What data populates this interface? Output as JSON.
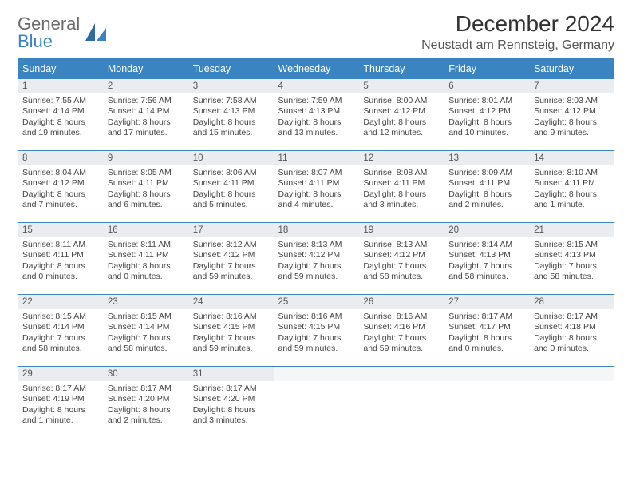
{
  "brand": {
    "general": "General",
    "blue": "Blue"
  },
  "title": "December 2024",
  "location": "Neustadt am Rennsteig, Germany",
  "colors": {
    "header_bg": "#3a84c2",
    "header_text": "#ffffff",
    "daynum_bg": "#e9edef",
    "border": "#3a84c2",
    "body_text": "#444444"
  },
  "dow": [
    "Sunday",
    "Monday",
    "Tuesday",
    "Wednesday",
    "Thursday",
    "Friday",
    "Saturday"
  ],
  "weeks": [
    {
      "nums": [
        "1",
        "2",
        "3",
        "4",
        "5",
        "6",
        "7"
      ],
      "cells": [
        {
          "sunrise": "Sunrise: 7:55 AM",
          "sunset": "Sunset: 4:14 PM",
          "daylight": "Daylight: 8 hours and 19 minutes."
        },
        {
          "sunrise": "Sunrise: 7:56 AM",
          "sunset": "Sunset: 4:14 PM",
          "daylight": "Daylight: 8 hours and 17 minutes."
        },
        {
          "sunrise": "Sunrise: 7:58 AM",
          "sunset": "Sunset: 4:13 PM",
          "daylight": "Daylight: 8 hours and 15 minutes."
        },
        {
          "sunrise": "Sunrise: 7:59 AM",
          "sunset": "Sunset: 4:13 PM",
          "daylight": "Daylight: 8 hours and 13 minutes."
        },
        {
          "sunrise": "Sunrise: 8:00 AM",
          "sunset": "Sunset: 4:12 PM",
          "daylight": "Daylight: 8 hours and 12 minutes."
        },
        {
          "sunrise": "Sunrise: 8:01 AM",
          "sunset": "Sunset: 4:12 PM",
          "daylight": "Daylight: 8 hours and 10 minutes."
        },
        {
          "sunrise": "Sunrise: 8:03 AM",
          "sunset": "Sunset: 4:12 PM",
          "daylight": "Daylight: 8 hours and 9 minutes."
        }
      ]
    },
    {
      "nums": [
        "8",
        "9",
        "10",
        "11",
        "12",
        "13",
        "14"
      ],
      "cells": [
        {
          "sunrise": "Sunrise: 8:04 AM",
          "sunset": "Sunset: 4:12 PM",
          "daylight": "Daylight: 8 hours and 7 minutes."
        },
        {
          "sunrise": "Sunrise: 8:05 AM",
          "sunset": "Sunset: 4:11 PM",
          "daylight": "Daylight: 8 hours and 6 minutes."
        },
        {
          "sunrise": "Sunrise: 8:06 AM",
          "sunset": "Sunset: 4:11 PM",
          "daylight": "Daylight: 8 hours and 5 minutes."
        },
        {
          "sunrise": "Sunrise: 8:07 AM",
          "sunset": "Sunset: 4:11 PM",
          "daylight": "Daylight: 8 hours and 4 minutes."
        },
        {
          "sunrise": "Sunrise: 8:08 AM",
          "sunset": "Sunset: 4:11 PM",
          "daylight": "Daylight: 8 hours and 3 minutes."
        },
        {
          "sunrise": "Sunrise: 8:09 AM",
          "sunset": "Sunset: 4:11 PM",
          "daylight": "Daylight: 8 hours and 2 minutes."
        },
        {
          "sunrise": "Sunrise: 8:10 AM",
          "sunset": "Sunset: 4:11 PM",
          "daylight": "Daylight: 8 hours and 1 minute."
        }
      ]
    },
    {
      "nums": [
        "15",
        "16",
        "17",
        "18",
        "19",
        "20",
        "21"
      ],
      "cells": [
        {
          "sunrise": "Sunrise: 8:11 AM",
          "sunset": "Sunset: 4:11 PM",
          "daylight": "Daylight: 8 hours and 0 minutes."
        },
        {
          "sunrise": "Sunrise: 8:11 AM",
          "sunset": "Sunset: 4:11 PM",
          "daylight": "Daylight: 8 hours and 0 minutes."
        },
        {
          "sunrise": "Sunrise: 8:12 AM",
          "sunset": "Sunset: 4:12 PM",
          "daylight": "Daylight: 7 hours and 59 minutes."
        },
        {
          "sunrise": "Sunrise: 8:13 AM",
          "sunset": "Sunset: 4:12 PM",
          "daylight": "Daylight: 7 hours and 59 minutes."
        },
        {
          "sunrise": "Sunrise: 8:13 AM",
          "sunset": "Sunset: 4:12 PM",
          "daylight": "Daylight: 7 hours and 58 minutes."
        },
        {
          "sunrise": "Sunrise: 8:14 AM",
          "sunset": "Sunset: 4:13 PM",
          "daylight": "Daylight: 7 hours and 58 minutes."
        },
        {
          "sunrise": "Sunrise: 8:15 AM",
          "sunset": "Sunset: 4:13 PM",
          "daylight": "Daylight: 7 hours and 58 minutes."
        }
      ]
    },
    {
      "nums": [
        "22",
        "23",
        "24",
        "25",
        "26",
        "27",
        "28"
      ],
      "cells": [
        {
          "sunrise": "Sunrise: 8:15 AM",
          "sunset": "Sunset: 4:14 PM",
          "daylight": "Daylight: 7 hours and 58 minutes."
        },
        {
          "sunrise": "Sunrise: 8:15 AM",
          "sunset": "Sunset: 4:14 PM",
          "daylight": "Daylight: 7 hours and 58 minutes."
        },
        {
          "sunrise": "Sunrise: 8:16 AM",
          "sunset": "Sunset: 4:15 PM",
          "daylight": "Daylight: 7 hours and 59 minutes."
        },
        {
          "sunrise": "Sunrise: 8:16 AM",
          "sunset": "Sunset: 4:15 PM",
          "daylight": "Daylight: 7 hours and 59 minutes."
        },
        {
          "sunrise": "Sunrise: 8:16 AM",
          "sunset": "Sunset: 4:16 PM",
          "daylight": "Daylight: 7 hours and 59 minutes."
        },
        {
          "sunrise": "Sunrise: 8:17 AM",
          "sunset": "Sunset: 4:17 PM",
          "daylight": "Daylight: 8 hours and 0 minutes."
        },
        {
          "sunrise": "Sunrise: 8:17 AM",
          "sunset": "Sunset: 4:18 PM",
          "daylight": "Daylight: 8 hours and 0 minutes."
        }
      ]
    },
    {
      "nums": [
        "29",
        "30",
        "31",
        "",
        "",
        "",
        ""
      ],
      "cells": [
        {
          "sunrise": "Sunrise: 8:17 AM",
          "sunset": "Sunset: 4:19 PM",
          "daylight": "Daylight: 8 hours and 1 minute."
        },
        {
          "sunrise": "Sunrise: 8:17 AM",
          "sunset": "Sunset: 4:20 PM",
          "daylight": "Daylight: 8 hours and 2 minutes."
        },
        {
          "sunrise": "Sunrise: 8:17 AM",
          "sunset": "Sunset: 4:20 PM",
          "daylight": "Daylight: 8 hours and 3 minutes."
        },
        null,
        null,
        null,
        null
      ]
    }
  ]
}
